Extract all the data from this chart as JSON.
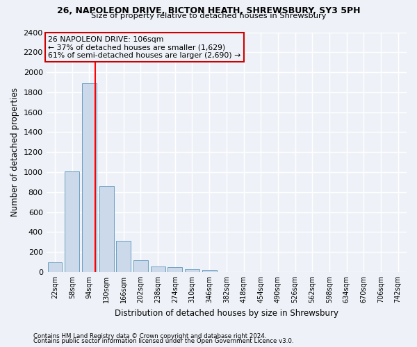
{
  "title": "26, NAPOLEON DRIVE, BICTON HEATH, SHREWSBURY, SY3 5PH",
  "subtitle": "Size of property relative to detached houses in Shrewsbury",
  "xlabel": "Distribution of detached houses by size in Shrewsbury",
  "ylabel": "Number of detached properties",
  "bar_color": "#ccd9ea",
  "bar_edge_color": "#6a9fc0",
  "categories": [
    "22sqm",
    "58sqm",
    "94sqm",
    "130sqm",
    "166sqm",
    "202sqm",
    "238sqm",
    "274sqm",
    "310sqm",
    "346sqm",
    "382sqm",
    "418sqm",
    "454sqm",
    "490sqm",
    "526sqm",
    "562sqm",
    "598sqm",
    "634sqm",
    "670sqm",
    "706sqm",
    "742sqm"
  ],
  "values": [
    95,
    1010,
    1890,
    860,
    315,
    115,
    55,
    48,
    28,
    18,
    0,
    0,
    0,
    0,
    0,
    0,
    0,
    0,
    0,
    0,
    0
  ],
  "ylim": [
    0,
    2400
  ],
  "yticks": [
    0,
    200,
    400,
    600,
    800,
    1000,
    1200,
    1400,
    1600,
    1800,
    2000,
    2200,
    2400
  ],
  "property_label": "26 NAPOLEON DRIVE: 106sqm",
  "annotation_line1": "← 37% of detached houses are smaller (1,629)",
  "annotation_line2": "61% of semi-detached houses are larger (2,690) →",
  "footnote1": "Contains HM Land Registry data © Crown copyright and database right 2024.",
  "footnote2": "Contains public sector information licensed under the Open Government Licence v3.0.",
  "background_color": "#eef2f8",
  "grid_color": "#ffffff",
  "box_edge_color": "#cc0000",
  "vline_position": 2.333
}
